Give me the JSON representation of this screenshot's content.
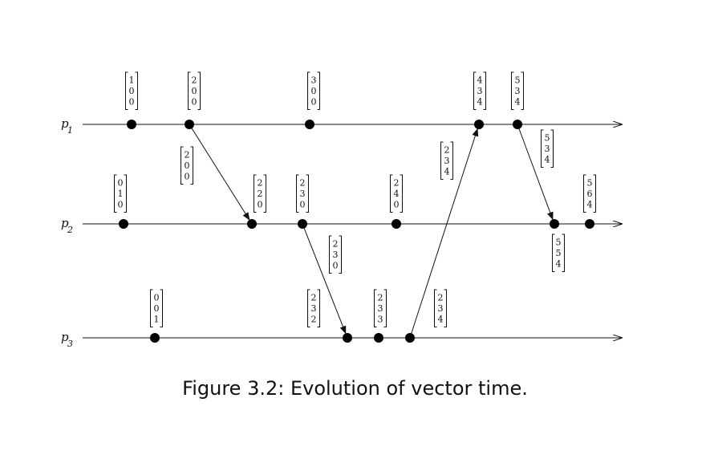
{
  "caption": "Figure 3.2: Evolution of vector time.",
  "processes": [
    {
      "id": "p1",
      "label": "p",
      "sub": "1"
    },
    {
      "id": "p2",
      "label": "p",
      "sub": "2"
    },
    {
      "id": "p3",
      "label": "p",
      "sub": "3"
    }
  ],
  "events": [
    {
      "id": "e11",
      "proc": "p1",
      "vector": [
        "1",
        "0",
        "0"
      ]
    },
    {
      "id": "e12",
      "proc": "p1",
      "vector": [
        "2",
        "0",
        "0"
      ]
    },
    {
      "id": "e13",
      "proc": "p1",
      "vector": [
        "3",
        "0",
        "0"
      ]
    },
    {
      "id": "e14",
      "proc": "p1",
      "vector": [
        "4",
        "3",
        "4"
      ]
    },
    {
      "id": "e15",
      "proc": "p1",
      "vector": [
        "5",
        "3",
        "4"
      ]
    },
    {
      "id": "e21",
      "proc": "p2",
      "vector": [
        "0",
        "1",
        "0"
      ]
    },
    {
      "id": "e22",
      "proc": "p2",
      "vector": [
        "2",
        "2",
        "0"
      ]
    },
    {
      "id": "e23",
      "proc": "p2",
      "vector": [
        "2",
        "3",
        "0"
      ]
    },
    {
      "id": "e24",
      "proc": "p2",
      "vector": [
        "2",
        "4",
        "0"
      ]
    },
    {
      "id": "e25",
      "proc": "p2",
      "vector": [
        "5",
        "5",
        "4"
      ]
    },
    {
      "id": "e26",
      "proc": "p2",
      "vector": [
        "5",
        "6",
        "4"
      ]
    },
    {
      "id": "e31",
      "proc": "p3",
      "vector": [
        "0",
        "0",
        "1"
      ]
    },
    {
      "id": "e32",
      "proc": "p3",
      "vector": [
        "2",
        "3",
        "2"
      ]
    },
    {
      "id": "e33",
      "proc": "p3",
      "vector": [
        "2",
        "3",
        "3"
      ]
    },
    {
      "id": "e34",
      "proc": "p3",
      "vector": [
        "2",
        "3",
        "4"
      ]
    }
  ],
  "messages": [
    {
      "from": "e12",
      "to": "e22",
      "vector": [
        "2",
        "0",
        "0"
      ]
    },
    {
      "from": "e23",
      "to": "e32",
      "vector": [
        "2",
        "3",
        "0"
      ]
    },
    {
      "from": "e34",
      "to": "e14",
      "vector": [
        "2",
        "3",
        "4"
      ]
    },
    {
      "from": "e15",
      "to": "e25",
      "vector": [
        "5",
        "3",
        "4"
      ]
    }
  ]
}
